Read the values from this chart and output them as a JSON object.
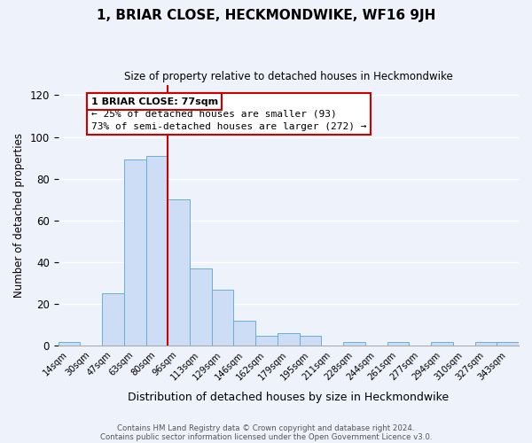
{
  "title": "1, BRIAR CLOSE, HECKMONDWIKE, WF16 9JH",
  "subtitle": "Size of property relative to detached houses in Heckmondwike",
  "xlabel": "Distribution of detached houses by size in Heckmondwike",
  "ylabel": "Number of detached properties",
  "bin_labels": [
    "14sqm",
    "30sqm",
    "47sqm",
    "63sqm",
    "80sqm",
    "96sqm",
    "113sqm",
    "129sqm",
    "146sqm",
    "162sqm",
    "179sqm",
    "195sqm",
    "211sqm",
    "228sqm",
    "244sqm",
    "261sqm",
    "277sqm",
    "294sqm",
    "310sqm",
    "327sqm",
    "343sqm"
  ],
  "bar_values": [
    2,
    0,
    25,
    89,
    91,
    70,
    37,
    27,
    12,
    5,
    6,
    5,
    0,
    2,
    0,
    2,
    0,
    2,
    0,
    2,
    2
  ],
  "bar_color": "#ccddf5",
  "bar_edge_color": "#6aaed6",
  "vline_x": 4.5,
  "vline_color": "#cc0000",
  "ylim": [
    0,
    125
  ],
  "yticks": [
    0,
    20,
    40,
    60,
    80,
    100,
    120
  ],
  "annotation_title": "1 BRIAR CLOSE: 77sqm",
  "annotation_line1": "← 25% of detached houses are smaller (93)",
  "annotation_line2": "73% of semi-detached houses are larger (272) →",
  "annotation_box_color": "#ffffff",
  "annotation_box_edge": "#cc0000",
  "footer1": "Contains HM Land Registry data © Crown copyright and database right 2024.",
  "footer2": "Contains public sector information licensed under the Open Government Licence v3.0.",
  "background_color": "#eef2fa",
  "grid_color": "#ffffff"
}
